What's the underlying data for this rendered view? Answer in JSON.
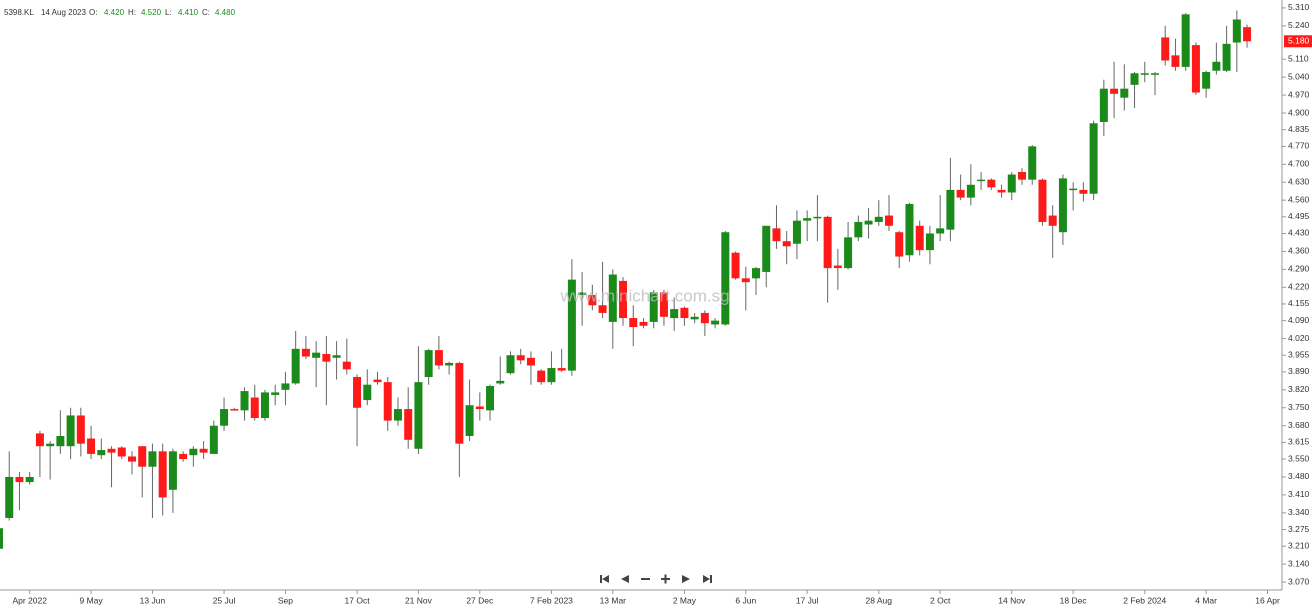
{
  "chart_data": {
    "type": "candlestick",
    "symbol": "5398.KL",
    "info": {
      "date": "14 Aug 2023",
      "items": [
        {
          "key": "O:",
          "value": "4.420"
        },
        {
          "key": "H:",
          "value": "4.520"
        },
        {
          "key": "L:",
          "value": "4.410"
        },
        {
          "key": "C:",
          "value": "4.480"
        }
      ]
    },
    "watermark": "www.minichart.com.sg",
    "up_color": "#1a8a1a",
    "down_color": "#ff1a1a",
    "wick_color": "#666666",
    "categories": [
      null,
      null,
      null,
      "Apr 2022",
      null,
      null,
      null,
      null,
      null,
      "9 May",
      null,
      null,
      null,
      null,
      null,
      "13 Jun",
      null,
      null,
      null,
      null,
      null,
      null,
      "25 Jul",
      null,
      null,
      null,
      null,
      null,
      "Sep",
      null,
      null,
      null,
      null,
      null,
      null,
      "17 Oct",
      null,
      null,
      null,
      null,
      null,
      "21 Nov",
      null,
      null,
      null,
      null,
      null,
      "27 Dec",
      null,
      null,
      null,
      null,
      null,
      null,
      "7 Feb 2023",
      null,
      null,
      null,
      null,
      null,
      "13 Mar",
      null,
      null,
      null,
      null,
      null,
      null,
      "2 May",
      null,
      null,
      null,
      null,
      null,
      "6 Jun",
      null,
      null,
      null,
      null,
      null,
      "17 Jul",
      null,
      null,
      null,
      null,
      null,
      null,
      "28 Aug",
      null,
      null,
      null,
      null,
      null,
      "2 Oct",
      null,
      null,
      null,
      null,
      null,
      null,
      "14 Nov",
      null,
      null,
      null,
      null,
      null,
      "18 Dec",
      null,
      null,
      null,
      null,
      null,
      null,
      "2 Feb 2024",
      null,
      null,
      null,
      null,
      null,
      "4 Mar",
      null,
      null,
      null,
      null,
      null,
      "16 Apr"
    ],
    "open": [
      3.2,
      3.32,
      3.48,
      3.46,
      3.65,
      3.6,
      3.6,
      3.6,
      3.72,
      3.63,
      3.565,
      3.59,
      3.595,
      3.56,
      3.6,
      3.52,
      3.58,
      3.43,
      3.57,
      3.565,
      3.59,
      3.57,
      3.68,
      3.745,
      3.74,
      3.79,
      3.71,
      3.8,
      3.82,
      3.845,
      3.98,
      3.945,
      3.96,
      3.945,
      3.93,
      3.87,
      3.78,
      3.86,
      3.85,
      3.7,
      3.745,
      3.59,
      3.87,
      3.975,
      3.915,
      3.925,
      3.64,
      3.755,
      3.74,
      3.845,
      3.885,
      3.955,
      3.945,
      3.895,
      3.85,
      3.905,
      3.895,
      4.19,
      4.19,
      4.15,
      4.085,
      4.245,
      4.1,
      4.085,
      4.085,
      4.2,
      4.1,
      4.14,
      4.095,
      4.12,
      4.075,
      4.075,
      4.355,
      4.255,
      4.255,
      4.28,
      4.45,
      4.4,
      4.39,
      4.48,
      4.49,
      4.495,
      4.305,
      4.295,
      4.415,
      4.465,
      4.475,
      4.5,
      4.435,
      4.345,
      4.46,
      4.365,
      4.43,
      4.445,
      4.6,
      4.57,
      4.635,
      4.64,
      4.6,
      4.59,
      4.67,
      4.64,
      4.64,
      4.5,
      4.435,
      4.6,
      4.6,
      4.585,
      4.865,
      4.995,
      4.96,
      5.01,
      5.05,
      5.05,
      5.195,
      5.125,
      5.08,
      5.165,
      4.995,
      5.065,
      5.065,
      5.175,
      5.235,
      null,
      null
    ],
    "high": [
      3.3,
      3.58,
      3.5,
      3.5,
      3.66,
      3.62,
      3.74,
      3.75,
      3.75,
      3.68,
      3.63,
      3.6,
      3.6,
      3.58,
      3.6,
      3.61,
      3.61,
      3.59,
      3.58,
      3.6,
      3.62,
      3.7,
      3.79,
      3.75,
      3.83,
      3.84,
      3.82,
      3.84,
      3.89,
      4.05,
      4.03,
      4.01,
      4.03,
      4.01,
      4.02,
      3.88,
      3.9,
      3.89,
      3.87,
      3.79,
      3.83,
      3.99,
      3.98,
      4.03,
      3.93,
      3.93,
      3.86,
      3.81,
      3.84,
      3.95,
      3.97,
      3.98,
      3.97,
      3.9,
      3.97,
      3.98,
      4.33,
      4.28,
      4.23,
      4.32,
      4.29,
      4.26,
      4.15,
      4.1,
      4.21,
      4.21,
      4.18,
      4.145,
      4.12,
      4.13,
      4.1,
      4.44,
      4.36,
      4.3,
      4.3,
      4.46,
      4.54,
      4.44,
      4.52,
      4.52,
      4.58,
      4.5,
      4.37,
      4.475,
      4.5,
      4.53,
      4.56,
      4.58,
      4.44,
      4.55,
      4.48,
      4.46,
      4.58,
      4.725,
      4.66,
      4.7,
      4.67,
      4.645,
      4.62,
      4.67,
      4.685,
      4.775,
      4.645,
      4.54,
      4.66,
      4.63,
      4.63,
      4.87,
      5.03,
      5.1,
      5.09,
      5.06,
      5.1,
      5.06,
      5.24,
      5.19,
      5.29,
      5.175,
      5.065,
      5.175,
      5.24,
      5.3,
      5.245,
      null,
      null
    ],
    "low": [
      3.19,
      3.31,
      3.35,
      3.45,
      3.48,
      3.47,
      3.57,
      3.55,
      3.56,
      3.55,
      3.55,
      3.44,
      3.55,
      3.49,
      3.4,
      3.32,
      3.33,
      3.34,
      3.54,
      3.52,
      3.55,
      3.57,
      3.66,
      3.74,
      3.7,
      3.7,
      3.7,
      3.76,
      3.76,
      3.84,
      3.94,
      3.83,
      3.76,
      3.86,
      3.88,
      3.6,
      3.76,
      3.84,
      3.66,
      3.68,
      3.59,
      3.57,
      3.84,
      3.9,
      3.88,
      3.48,
      3.62,
      3.7,
      3.7,
      3.84,
      3.88,
      3.92,
      3.84,
      3.84,
      3.84,
      3.89,
      3.875,
      4.07,
      4.13,
      4.1,
      3.98,
      4.07,
      3.99,
      4.06,
      4.06,
      4.07,
      4.05,
      4.07,
      4.08,
      4.03,
      4.06,
      4.07,
      4.25,
      4.13,
      4.19,
      4.22,
      4.37,
      4.31,
      4.33,
      4.4,
      4.4,
      4.16,
      4.21,
      4.29,
      4.4,
      4.41,
      4.46,
      4.44,
      4.295,
      4.32,
      4.345,
      4.31,
      4.4,
      4.4,
      4.56,
      4.54,
      4.6,
      4.6,
      4.57,
      4.56,
      4.62,
      4.62,
      4.46,
      4.335,
      4.385,
      4.52,
      4.555,
      4.56,
      4.81,
      4.88,
      4.91,
      4.92,
      5.02,
      4.97,
      5.085,
      5.065,
      5.065,
      4.97,
      4.96,
      5.05,
      5.06,
      5.06,
      5.155,
      null,
      null
    ],
    "close": [
      3.28,
      3.48,
      3.46,
      3.48,
      3.6,
      3.61,
      3.64,
      3.72,
      3.61,
      3.57,
      3.585,
      3.575,
      3.56,
      3.54,
      3.52,
      3.58,
      3.4,
      3.58,
      3.55,
      3.59,
      3.575,
      3.68,
      3.745,
      3.74,
      3.815,
      3.71,
      3.81,
      3.81,
      3.845,
      3.98,
      3.95,
      3.965,
      3.93,
      3.955,
      3.9,
      3.75,
      3.84,
      3.85,
      3.7,
      3.745,
      3.625,
      3.85,
      3.975,
      3.915,
      3.925,
      3.61,
      3.76,
      3.745,
      3.835,
      3.855,
      3.955,
      3.935,
      3.915,
      3.85,
      3.905,
      3.895,
      4.25,
      4.2,
      4.15,
      4.12,
      4.27,
      4.1,
      4.065,
      4.07,
      4.2,
      4.105,
      4.135,
      4.1,
      4.105,
      4.08,
      4.09,
      4.435,
      4.255,
      4.24,
      4.295,
      4.46,
      4.4,
      4.38,
      4.48,
      4.49,
      4.495,
      4.295,
      4.295,
      4.415,
      4.475,
      4.48,
      4.495,
      4.46,
      4.34,
      4.545,
      4.365,
      4.43,
      4.45,
      4.6,
      4.57,
      4.62,
      4.64,
      4.61,
      4.59,
      4.66,
      4.64,
      4.77,
      4.475,
      4.46,
      4.645,
      4.605,
      4.585,
      4.86,
      4.995,
      4.975,
      4.995,
      5.055,
      5.055,
      5.055,
      5.105,
      5.08,
      5.285,
      4.98,
      5.06,
      5.1,
      5.17,
      5.265,
      5.18,
      null,
      null
    ],
    "last_price": {
      "value": 5.18,
      "label": "5.180"
    },
    "ylim": [
      3.039,
      5.341
    ],
    "yticks": [
      {
        "value": 3.07,
        "label": "3.070"
      },
      {
        "value": 3.14,
        "label": "3.140"
      },
      {
        "value": 3.21,
        "label": "3.210"
      },
      {
        "value": 3.275,
        "label": "3.275"
      },
      {
        "value": 3.34,
        "label": "3.340"
      },
      {
        "value": 3.41,
        "label": "3.410"
      },
      {
        "value": 3.48,
        "label": "3.480"
      },
      {
        "value": 3.55,
        "label": "3.550"
      },
      {
        "value": 3.615,
        "label": "3.615"
      },
      {
        "value": 3.68,
        "label": "3.680"
      },
      {
        "value": 3.75,
        "label": "3.750"
      },
      {
        "value": 3.82,
        "label": "3.820"
      },
      {
        "value": 3.89,
        "label": "3.890"
      },
      {
        "value": 3.955,
        "label": "3.955"
      },
      {
        "value": 4.02,
        "label": "4.020"
      },
      {
        "value": 4.09,
        "label": "4.090"
      },
      {
        "value": 4.155,
        "label": "4.155"
      },
      {
        "value": 4.22,
        "label": "4.220"
      },
      {
        "value": 4.29,
        "label": "4.290"
      },
      {
        "value": 4.36,
        "label": "4.360"
      },
      {
        "value": 4.43,
        "label": "4.430"
      },
      {
        "value": 4.495,
        "label": "4.495"
      },
      {
        "value": 4.56,
        "label": "4.560"
      },
      {
        "value": 4.63,
        "label": "4.630"
      },
      {
        "value": 4.7,
        "label": "4.700"
      },
      {
        "value": 4.77,
        "label": "4.770"
      },
      {
        "value": 4.835,
        "label": "4.835"
      },
      {
        "value": 4.9,
        "label": "4.900"
      },
      {
        "value": 4.97,
        "label": "4.970"
      },
      {
        "value": 5.04,
        "label": "5.040"
      },
      {
        "value": 5.11,
        "label": "5.110"
      },
      {
        "value": 5.24,
        "label": "5.240"
      },
      {
        "value": 5.31,
        "label": "5.310"
      }
    ]
  }
}
